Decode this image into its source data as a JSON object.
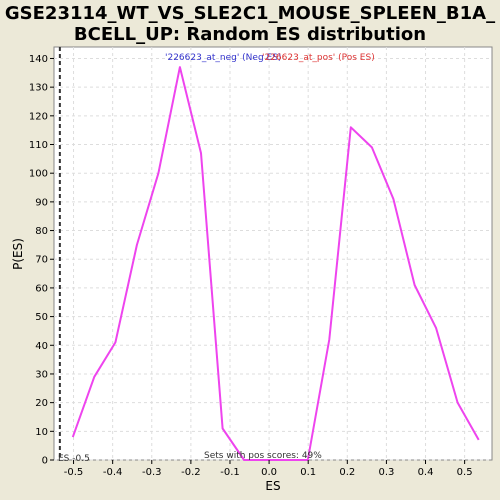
{
  "chart_data": {
    "type": "line",
    "title_line1": "GSE23114_WT_VS_SLE2C1_MOUSE_SPLEEN_B1A_",
    "title_line2": "BCELL_UP: Random ES distribution",
    "xlabel": "ES",
    "ylabel": "P(ES)",
    "xlim": [
      -0.55,
      0.57
    ],
    "ylim": [
      0,
      144
    ],
    "xticks": [
      -0.5,
      -0.4,
      -0.3,
      -0.2,
      -0.1,
      0.0,
      0.1,
      0.2,
      0.3,
      0.4,
      0.5
    ],
    "xtick_labels": [
      "-0.5",
      "-0.4",
      "-0.3",
      "-0.2",
      "-0.1",
      "0.0",
      "0.1",
      "0.2",
      "0.3",
      "0.4",
      "0.5"
    ],
    "yticks": [
      0,
      10,
      20,
      30,
      40,
      50,
      60,
      70,
      80,
      90,
      100,
      110,
      120,
      130,
      140
    ],
    "grid": true,
    "series": [
      {
        "color": "#ee44ee",
        "x": [
          -0.502,
          -0.447,
          -0.393,
          -0.338,
          -0.283,
          -0.228,
          -0.174,
          -0.119,
          -0.064,
          -0.01,
          0.045,
          0.099,
          0.154,
          0.209,
          0.263,
          0.318,
          0.372,
          0.427,
          0.482,
          0.536
        ],
        "y": [
          8,
          29,
          41,
          75,
          100,
          137,
          107,
          11,
          0,
          0,
          0,
          0,
          42,
          116,
          109,
          91,
          61,
          46,
          20,
          7
        ]
      }
    ],
    "legend": [
      {
        "label": "'226623_at_neg' (Neg ES)",
        "color": "#3333cc"
      },
      {
        "label": "'226623_at_pos' (Pos ES)",
        "color": "#dd3333"
      }
    ],
    "legend_position": "top-center",
    "marker_line": {
      "x": -0.535,
      "style": "dashed",
      "color": "#333333"
    },
    "annotations": {
      "es_label": "ES -0.5",
      "pos_scores": "Sets with pos scores: 49%"
    }
  }
}
